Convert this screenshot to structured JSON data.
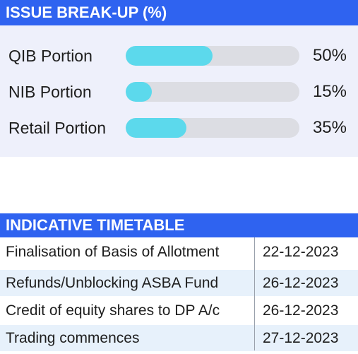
{
  "breakup": {
    "title": "ISSUE BREAK-UP (%)",
    "rows": [
      {
        "label": "QIB Portion",
        "value_text": "50%",
        "fraction": 0.5
      },
      {
        "label": "NIB Portion",
        "value_text": "15%",
        "fraction": 0.15
      },
      {
        "label": "Retail Portion",
        "value_text": "35%",
        "fraction": 0.35
      }
    ],
    "colors": {
      "header": "#2f63f0",
      "fill": "#5cd9ec",
      "track": "#dcdde3"
    }
  },
  "timetable": {
    "title": "INDICATIVE TIMETABLE",
    "rows": [
      {
        "event": "Finalisation of Basis of Allotment",
        "date": "22-12-2023"
      },
      {
        "event": "Refunds/Unblocking ASBA Fund",
        "date": "26-12-2023"
      },
      {
        "event": "Credit of equity shares to DP A/c",
        "date": "26-12-2023"
      },
      {
        "event": "Trading commences",
        "date": "27-12-2023"
      }
    ]
  }
}
